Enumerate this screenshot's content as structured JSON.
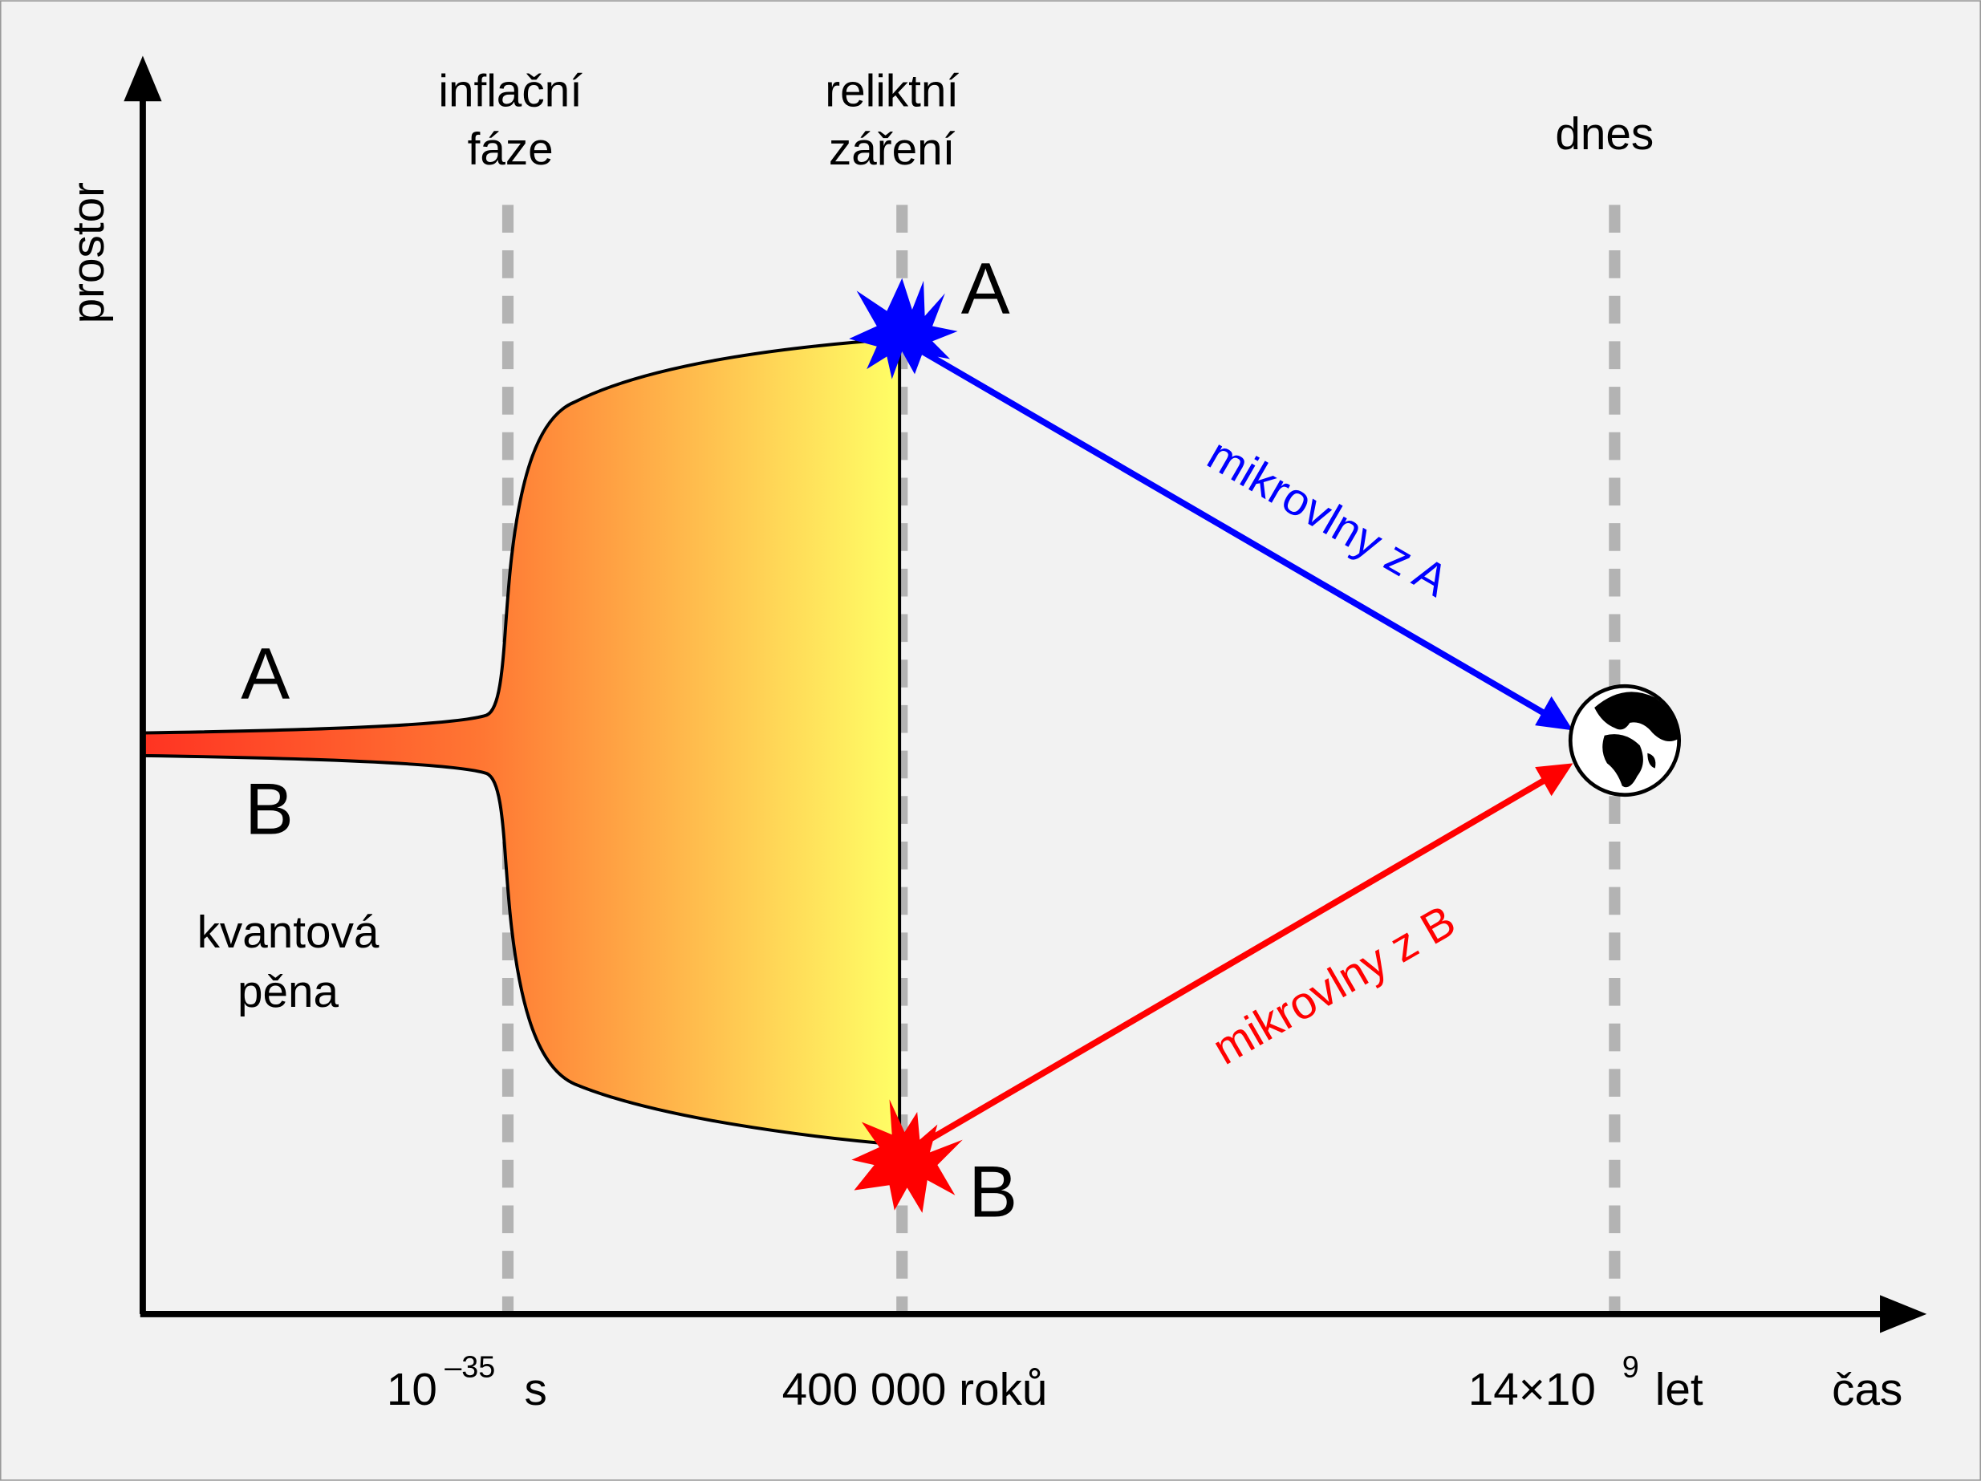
{
  "axes": {
    "y_label": "prostor",
    "x_label": "čas"
  },
  "phases": [
    {
      "label_line1": "inflační",
      "label_line2": "fáze"
    },
    {
      "label_line1": "reliktní",
      "label_line2": "záření"
    },
    {
      "label_line1": "dnes",
      "label_line2": ""
    }
  ],
  "time_ticks": {
    "t1_base": "10",
    "t1_exp": "–35",
    "t1_unit": "s",
    "t2": "400 000 roků",
    "t3_base": "14×10",
    "t3_exp": "9",
    "t3_unit": "let"
  },
  "points": {
    "a": "A",
    "b": "B"
  },
  "foam": {
    "line1": "kvantová",
    "line2": "pěna"
  },
  "rays": {
    "from_a": "mikrovlny z A",
    "from_b": "mikrovlny z B"
  },
  "colors": {
    "ray_a": "#0000ff",
    "ray_b": "#ff0000",
    "region_start": "#ff7733",
    "region_end": "#ffff66",
    "phase_line": "#b3b3b3"
  },
  "icons": {
    "earth": "earth-globe-icon",
    "flash_a": "starburst-icon",
    "flash_b": "starburst-icon"
  }
}
